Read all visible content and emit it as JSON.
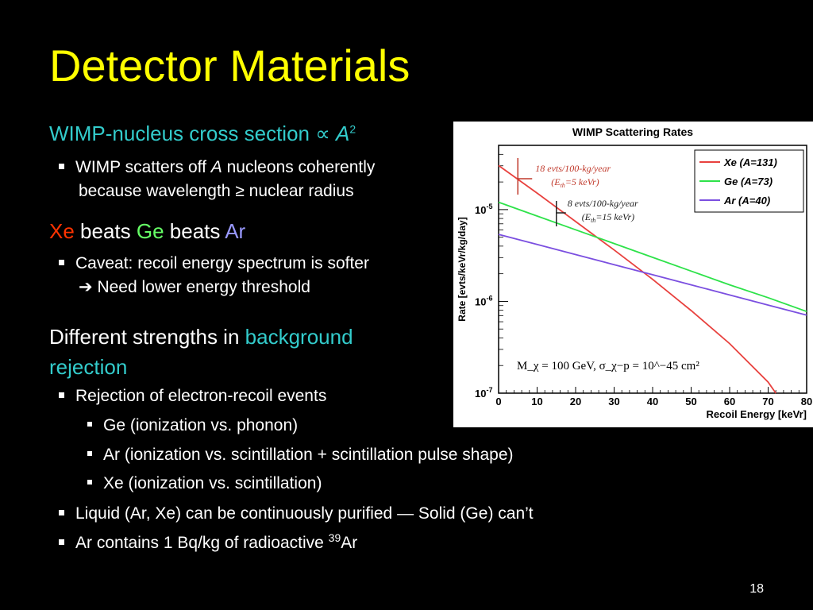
{
  "slide": {
    "title": "Detector Materials",
    "page_number": "18",
    "heading1": {
      "text": "WIMP-nucleus cross section ∝ ",
      "symbol": "A",
      "sup": "2"
    },
    "bullet1": {
      "pre": "WIMP scatters off ",
      "italic": "A",
      "post": " nucleons coherently",
      "line2": "because wavelength ≥ nuclear radius"
    },
    "heading2": {
      "xe": "Xe",
      "beats1": " beats ",
      "ge": "Ge",
      "beats2": " beats ",
      "ar": "Ar"
    },
    "bullet2": {
      "line1": "Caveat: recoil energy spectrum is softer",
      "arrow": "➔",
      "line2": " Need lower energy threshold"
    },
    "heading3": {
      "pre": "Different strengths in ",
      "accent": "background",
      "line2": "rejection"
    },
    "bullet3": "Rejection of electron-recoil events",
    "sub_bullets": [
      "Ge (ionization vs. phonon)",
      "Ar (ionization vs. scintillation + scintillation pulse shape)",
      "Xe (ionization vs. scintillation)"
    ],
    "bullet4": "Liquid (Ar, Xe) can be continuously purified — Solid (Ge) can’t",
    "bullet5": {
      "pre": "Ar contains 1 Bq/kg of radioactive ",
      "sup": "39",
      "post": "Ar"
    }
  },
  "colors": {
    "title": "#ffff00",
    "cyan": "#33cccc",
    "xe": "#ff3300",
    "ge": "#66ff66",
    "ar": "#9999ff"
  },
  "chart_data": {
    "type": "line",
    "title": "WIMP Scattering Rates",
    "xlabel": "Recoil Energy [keVr]",
    "ylabel": "Rate [evts/keVr/kg/day]",
    "xlim": [
      0,
      80
    ],
    "ylim_log10": [
      -7,
      -4.3
    ],
    "y_scale": "log",
    "x_ticks": [
      "0",
      "10",
      "20",
      "30",
      "40",
      "50",
      "60",
      "70",
      "80"
    ],
    "y_ticks": [
      {
        "base": "10",
        "exp": "-5",
        "value": -5
      },
      {
        "base": "10",
        "exp": "-6",
        "value": -6
      },
      {
        "base": "10",
        "exp": "-7",
        "value": -7
      }
    ],
    "legend_position": "top-right",
    "series": [
      {
        "name": "Xe (A=131)",
        "color": "#e8413e",
        "x": [
          0,
          10,
          20,
          30,
          40,
          50,
          60,
          70,
          72
        ],
        "y_log10": [
          -4.52,
          -4.82,
          -5.13,
          -5.44,
          -5.76,
          -6.1,
          -6.46,
          -6.88,
          -7.0
        ]
      },
      {
        "name": "Ge (A=73)",
        "color": "#2ee24a",
        "x": [
          0,
          10,
          20,
          30,
          40,
          50,
          60,
          70,
          80
        ],
        "y_log10": [
          -4.92,
          -5.07,
          -5.22,
          -5.37,
          -5.52,
          -5.67,
          -5.82,
          -5.96,
          -6.11
        ]
      },
      {
        "name": "Ar (A=40)",
        "color": "#7b4fe0",
        "x": [
          0,
          10,
          20,
          30,
          40,
          50,
          60,
          70,
          80
        ],
        "y_log10": [
          -5.27,
          -5.38,
          -5.49,
          -5.6,
          -5.71,
          -5.82,
          -5.93,
          -6.04,
          -6.15
        ]
      }
    ],
    "annotations": [
      {
        "line1": "18 evts/100-kg/year",
        "line2": "(E",
        "sub": "th",
        "line2_end": "=5 keVr)",
        "color": "#c0392b",
        "marker_x": 5
      },
      {
        "line1": "8 evts/100-kg/year",
        "line2": "(E",
        "sub": "th",
        "line2_end": "=15 keVr)",
        "color": "#222222",
        "marker_x": 15
      }
    ],
    "formula": "M_χ = 100 GeV, σ_χ−p = 10^−45 cm²"
  }
}
